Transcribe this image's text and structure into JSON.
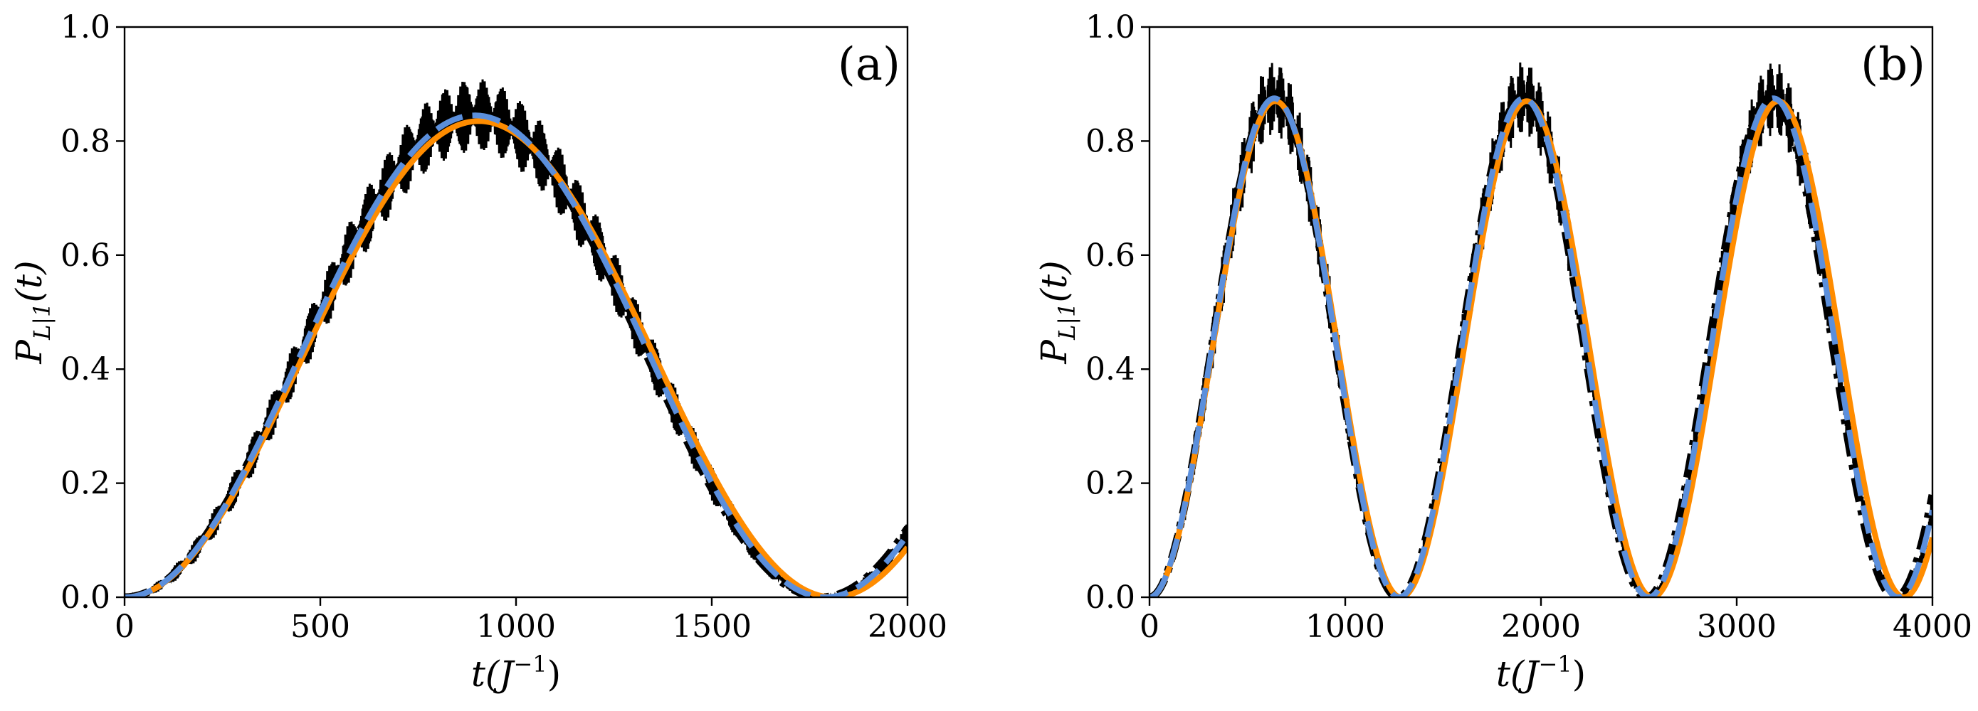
{
  "chart_data": [
    {
      "type": "line",
      "panel_label": "(a)",
      "xlabel": "t(J^{-1})",
      "xlabel_main": "t(J",
      "xlabel_sup": "−1",
      "xlabel_close": ")",
      "ylabel_main": "P",
      "ylabel_sub": "L|1",
      "ylabel_arg": "(t)",
      "xlim": [
        0,
        2000
      ],
      "ylim": [
        0.0,
        1.0
      ],
      "xticks": [
        0,
        500,
        1000,
        1500,
        2000
      ],
      "xtick_labels": [
        "0",
        "500",
        "1000",
        "1500",
        "2000"
      ],
      "yticks": [
        0.0,
        0.2,
        0.4,
        0.6,
        0.8,
        1.0
      ],
      "ytick_labels": [
        "0.0",
        "0.2",
        "0.4",
        "0.6",
        "0.8",
        "1.0"
      ],
      "series": [
        {
          "name": "numerical (oscillating)",
          "color": "#000000",
          "style": "solid-thin",
          "amplitude": 0.845,
          "period": 1790,
          "noise": 0.07
        },
        {
          "name": "black dash-dot",
          "color": "#000000",
          "style": "dashdot",
          "amplitude": 0.845,
          "period": 1780
        },
        {
          "name": "orange",
          "color": "#ff8c00",
          "style": "solid",
          "amplitude": 0.835,
          "period": 1810
        },
        {
          "name": "blue dashed",
          "color": "#5b8fdc",
          "style": "dashed",
          "amplitude": 0.845,
          "period": 1790
        }
      ]
    },
    {
      "type": "line",
      "panel_label": "(b)",
      "xlabel": "t(J^{-1})",
      "xlabel_main": "t(J",
      "xlabel_sup": "−1",
      "xlabel_close": ")",
      "ylabel_main": "P",
      "ylabel_sub": "L|1",
      "ylabel_arg": "(t)",
      "xlim": [
        0,
        4000
      ],
      "ylim": [
        0.0,
        1.0
      ],
      "xticks": [
        0,
        1000,
        2000,
        3000,
        4000
      ],
      "xtick_labels": [
        "0",
        "1000",
        "2000",
        "3000",
        "4000"
      ],
      "yticks": [
        0.0,
        0.2,
        0.4,
        0.6,
        0.8,
        1.0
      ],
      "ytick_labels": [
        "0.0",
        "0.2",
        "0.4",
        "0.6",
        "0.8",
        "1.0"
      ],
      "series": [
        {
          "name": "numerical (oscillating)",
          "color": "#000000",
          "style": "solid-thin",
          "amplitude": 0.875,
          "period": 1275,
          "noise": 0.07
        },
        {
          "name": "black dash-dot",
          "color": "#000000",
          "style": "dashdot",
          "amplitude": 0.875,
          "period": 1270
        },
        {
          "name": "orange",
          "color": "#ff8c00",
          "style": "solid",
          "amplitude": 0.87,
          "period": 1285
        },
        {
          "name": "blue dashed",
          "color": "#5b8fdc",
          "style": "dashed",
          "amplitude": 0.875,
          "period": 1275
        }
      ]
    }
  ]
}
